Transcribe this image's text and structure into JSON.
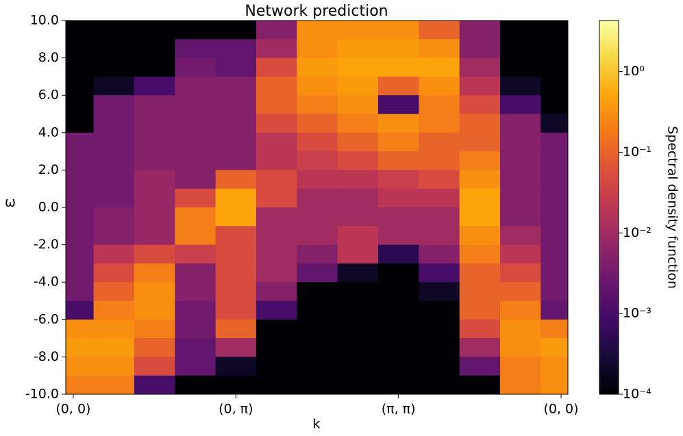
{
  "chart_data": {
    "type": "heatmap",
    "title": "Network prediction",
    "xlabel": "k",
    "ylabel": "ω",
    "colorbar_label": "Spectral density function",
    "colormap": "inferno",
    "color_scale": "log",
    "xlim": [
      -0.046,
      3.042
    ],
    "ylim": [
      -10,
      10
    ],
    "xticks": [
      {
        "value": 0,
        "label": "(0, 0)"
      },
      {
        "value": 1,
        "label": "(0, π)"
      },
      {
        "value": 2,
        "label": "(π, π)"
      },
      {
        "value": 3,
        "label": "(0, 0)"
      }
    ],
    "yticks": [
      {
        "value": 10,
        "label": "10.0"
      },
      {
        "value": 8,
        "label": "8.0"
      },
      {
        "value": 6,
        "label": "6.0"
      },
      {
        "value": 4,
        "label": "4.0"
      },
      {
        "value": 2,
        "label": "2.0"
      },
      {
        "value": 0,
        "label": "0.0"
      },
      {
        "value": -2,
        "label": "-2.0"
      },
      {
        "value": -4,
        "label": "-4.0"
      },
      {
        "value": -6,
        "label": "-6.0"
      },
      {
        "value": -8,
        "label": "-8.0"
      },
      {
        "value": -10,
        "label": "-10.0"
      }
    ],
    "zlim": [
      0.0001,
      4.3
    ],
    "zticks": [
      {
        "value": 0.0001,
        "label": "10⁻⁴"
      },
      {
        "value": 0.001,
        "label": "10⁻³"
      },
      {
        "value": 0.01,
        "label": "10⁻²"
      },
      {
        "value": 0.1,
        "label": "10⁻¹"
      },
      {
        "value": 1,
        "label": "10⁰"
      }
    ],
    "x": [
      0,
      0.25,
      0.5,
      0.75,
      1,
      1.25,
      1.5,
      1.75,
      2,
      2.25,
      2.5,
      2.75,
      3
    ],
    "y": [
      9.5,
      8.5,
      7.5,
      6.5,
      5.5,
      4.5,
      3.5,
      2.5,
      1.5,
      0.5,
      -0.5,
      -1.5,
      -2.5,
      -3.5,
      -4.5,
      -5.5,
      -6.5,
      -7.5,
      -8.5,
      -9.5
    ],
    "z": [
      [
        0.0001,
        0.0001,
        0.0001,
        0.0001,
        0.0001,
        0.005,
        0.3,
        0.3,
        0.3,
        0.1,
        0.005,
        0.0001,
        0.0001
      ],
      [
        0.0001,
        0.0001,
        0.0001,
        0.002,
        0.002,
        0.01,
        0.3,
        0.4,
        0.4,
        0.3,
        0.005,
        0.0001,
        0.0001
      ],
      [
        0.0001,
        0.0001,
        0.0001,
        0.003,
        0.002,
        0.05,
        0.4,
        0.5,
        0.5,
        0.5,
        0.01,
        0.0001,
        0.0001
      ],
      [
        0.0001,
        0.0002,
        0.001,
        0.005,
        0.005,
        0.1,
        0.3,
        0.4,
        0.1,
        0.3,
        0.02,
        0.0002,
        0.0001
      ],
      [
        0.0001,
        0.003,
        0.005,
        0.005,
        0.005,
        0.1,
        0.2,
        0.3,
        0.001,
        0.2,
        0.05,
        0.001,
        0.0001
      ],
      [
        0.0001,
        0.003,
        0.005,
        0.005,
        0.005,
        0.05,
        0.1,
        0.2,
        0.3,
        0.2,
        0.1,
        0.005,
        0.0002
      ],
      [
        0.003,
        0.003,
        0.005,
        0.005,
        0.005,
        0.02,
        0.05,
        0.1,
        0.2,
        0.1,
        0.1,
        0.005,
        0.003
      ],
      [
        0.003,
        0.003,
        0.005,
        0.005,
        0.005,
        0.02,
        0.03,
        0.05,
        0.1,
        0.1,
        0.2,
        0.005,
        0.003
      ],
      [
        0.003,
        0.003,
        0.008,
        0.005,
        0.1,
        0.05,
        0.02,
        0.02,
        0.03,
        0.05,
        0.3,
        0.005,
        0.003
      ],
      [
        0.003,
        0.003,
        0.008,
        0.05,
        0.5,
        0.05,
        0.01,
        0.01,
        0.02,
        0.02,
        0.5,
        0.005,
        0.003
      ],
      [
        0.003,
        0.005,
        0.008,
        0.2,
        0.5,
        0.01,
        0.01,
        0.01,
        0.01,
        0.01,
        0.5,
        0.005,
        0.003
      ],
      [
        0.003,
        0.005,
        0.008,
        0.2,
        0.05,
        0.01,
        0.01,
        0.02,
        0.01,
        0.01,
        0.3,
        0.01,
        0.003
      ],
      [
        0.003,
        0.02,
        0.05,
        0.03,
        0.05,
        0.01,
        0.005,
        0.02,
        0.0005,
        0.005,
        0.2,
        0.02,
        0.003
      ],
      [
        0.003,
        0.05,
        0.2,
        0.005,
        0.05,
        0.01,
        0.002,
        0.0002,
        0.0001,
        0.001,
        0.1,
        0.05,
        0.003
      ],
      [
        0.003,
        0.1,
        0.3,
        0.005,
        0.05,
        0.005,
        0.0001,
        0.0001,
        0.0001,
        0.0002,
        0.1,
        0.1,
        0.003
      ],
      [
        0.001,
        0.2,
        0.3,
        0.003,
        0.05,
        0.001,
        0.0001,
        0.0001,
        0.0001,
        0.0001,
        0.1,
        0.2,
        0.002
      ],
      [
        0.3,
        0.3,
        0.2,
        0.003,
        0.1,
        0.0001,
        0.0001,
        0.0001,
        0.0001,
        0.0001,
        0.05,
        0.3,
        0.2
      ],
      [
        0.4,
        0.4,
        0.1,
        0.002,
        0.01,
        0.0001,
        0.0001,
        0.0001,
        0.0001,
        0.0001,
        0.01,
        0.3,
        0.4
      ],
      [
        0.3,
        0.3,
        0.05,
        0.002,
        0.0002,
        0.0001,
        0.0001,
        0.0001,
        0.0001,
        0.0001,
        0.002,
        0.2,
        0.3
      ],
      [
        0.2,
        0.2,
        0.001,
        0.0001,
        0.0001,
        0.0001,
        0.0001,
        0.0001,
        0.0001,
        0.0001,
        0.0001,
        0.2,
        0.3
      ]
    ]
  }
}
